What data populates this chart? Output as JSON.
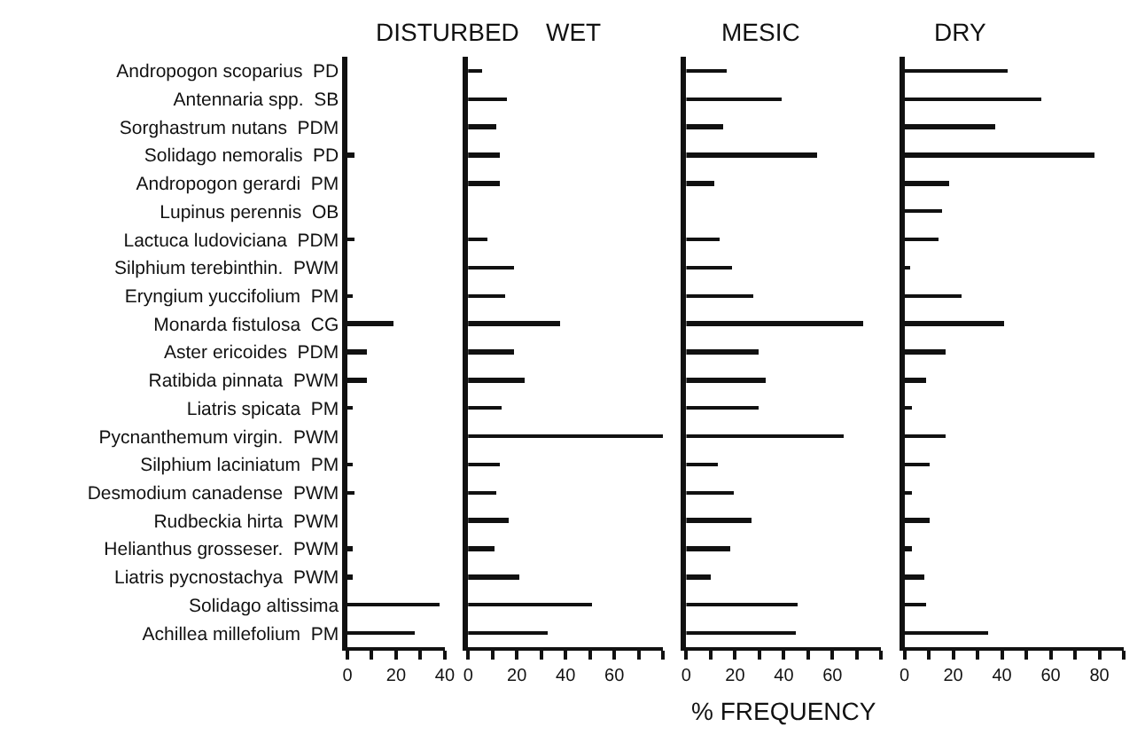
{
  "chart_data": [
    {
      "type": "bar",
      "orientation": "horizontal",
      "title": "DISTURBED",
      "color": "#111111",
      "grid": false,
      "categories": [
        "Andropogon scoparius  PD",
        "Antennaria spp.  SB",
        "Sorghastrum nutans  PDM",
        "Solidago nemoralis  PD",
        "Andropogon gerardi  PM",
        "Lupinus perennis  OB",
        "Lactuca ludoviciana  PDM",
        "Silphium terebinthin.  PWM",
        "Eryngium yuccifolium  PM",
        "Monarda fistulosa  CG",
        "Aster ericoides  PDM",
        "Ratibida pinnata  PWM",
        "Liatris spicata  PM",
        "Pycnanthemum virgin.  PWM",
        "Silphium laciniatum  PM",
        "Desmodium canadense  PWM",
        "Rudbeckia hirta  PWM",
        "Helianthus grosseser.  PWM",
        "Liatris pycnostachya  PWM",
        "Solidago altissima",
        "Achillea millefolium  PM"
      ],
      "values": [
        0,
        0,
        0,
        3,
        0,
        0,
        3,
        0,
        2,
        19,
        8,
        8,
        2,
        0,
        2,
        3,
        0,
        2,
        2,
        38,
        28
      ],
      "xlim": [
        0,
        40
      ],
      "xticks": [
        0,
        {
          "value": 10,
          "label": null
        },
        20,
        {
          "value": 30,
          "label": null
        },
        40
      ]
    },
    {
      "type": "bar",
      "orientation": "horizontal",
      "title": "WET",
      "color": "#111111",
      "grid": false,
      "tick_labels": "x",
      "categories": [
        "Andropogon scoparius  PD",
        "Antennaria spp.  SB",
        "Sorghastrum nutans  PDM",
        "Solidago nemoralis  PD",
        "Andropogon gerardi  PM",
        "Lupinus perennis  OB",
        "Lactuca ludoviciana  PDM",
        "Silphium terebinthin.  PWM",
        "Eryngium yuccifolium  PM",
        "Monarda fistulosa  CG",
        "Aster ericoides  PDM",
        "Ratibida pinnata  PWM",
        "Liatris spicata  PM",
        "Pycnanthemum virgin.  PWM",
        "Silphium laciniatum  PM",
        "Desmodium canadense  PWM",
        "Rudbeckia hirta  PWM",
        "Helianthus grosseser.  PWM",
        "Liatris pycnostachya  PWM",
        "Solidago altissima",
        "Achillea millefolium  PM"
      ],
      "values": [
        6,
        16,
        12,
        13,
        13,
        0,
        8,
        19,
        15,
        38,
        19,
        23,
        14,
        80,
        13,
        12,
        17,
        11,
        21,
        51,
        33
      ],
      "xlim": [
        0,
        80
      ],
      "xticks": [
        0,
        {
          "value": 10,
          "label": null
        },
        20,
        {
          "value": 30,
          "label": null
        },
        40,
        {
          "value": 50,
          "label": null
        },
        60,
        {
          "value": 70,
          "label": null
        },
        {
          "value": 80,
          "label": null
        }
      ]
    },
    {
      "type": "bar",
      "orientation": "horizontal",
      "title": "MESIC",
      "xlabel": "% FREQUENCY",
      "color": "#111111",
      "grid": false,
      "tick_labels": "x",
      "categories": [
        "Andropogon scoparius  PD",
        "Antennaria spp.  SB",
        "Sorghastrum nutans  PDM",
        "Solidago nemoralis  PD",
        "Andropogon gerardi  PM",
        "Lupinus perennis  OB",
        "Lactuca ludoviciana  PDM",
        "Silphium terebinthin.  PWM",
        "Eryngium yuccifolium  PM",
        "Monarda fistulosa  CG",
        "Aster ericoides  PDM",
        "Ratibida pinnata  PWM",
        "Liatris spicata  PM",
        "Pycnanthemum virgin.  PWM",
        "Silphium laciniatum  PM",
        "Desmodium canadense  PWM",
        "Rudbeckia hirta  PWM",
        "Helianthus grosseser.  PWM",
        "Liatris pycnostachya  PWM",
        "Solidago altissima",
        "Achillea millefolium  PM"
      ],
      "values": [
        17,
        39,
        15,
        54,
        12,
        0,
        14,
        19,
        28,
        73,
        30,
        33,
        30,
        65,
        13,
        20,
        27,
        18,
        10,
        46,
        45
      ],
      "xlim": [
        0,
        80
      ],
      "xticks": [
        0,
        {
          "value": 10,
          "label": null
        },
        20,
        {
          "value": 30,
          "label": null
        },
        40,
        {
          "value": 50,
          "label": null
        },
        60,
        {
          "value": 70,
          "label": null
        },
        {
          "value": 80,
          "label": null
        }
      ]
    },
    {
      "type": "bar",
      "orientation": "horizontal",
      "title": "DRY",
      "color": "#111111",
      "grid": false,
      "tick_labels": "x",
      "categories": [
        "Andropogon scoparius  PD",
        "Antennaria spp.  SB",
        "Sorghastrum nutans  PDM",
        "Solidago nemoralis  PD",
        "Andropogon gerardi  PM",
        "Lupinus perennis  OB",
        "Lactuca ludoviciana  PDM",
        "Silphium terebinthin.  PWM",
        "Eryngium yuccifolium  PM",
        "Monarda fistulosa  CG",
        "Aster ericoides  PDM",
        "Ratibida pinnata  PWM",
        "Liatris spicata  PM",
        "Pycnanthemum virgin.  PWM",
        "Silphium laciniatum  PM",
        "Desmodium canadense  PWM",
        "Rudbeckia hirta  PWM",
        "Helianthus grosseser.  PWM",
        "Liatris pycnostachya  PWM",
        "Solidago altissima",
        "Achillea millefolium  PM"
      ],
      "values": [
        42,
        56,
        37,
        78,
        18,
        15,
        14,
        2,
        23,
        41,
        17,
        9,
        3,
        17,
        10,
        3,
        10,
        3,
        8,
        9,
        34
      ],
      "xlim": [
        0,
        90
      ],
      "xticks": [
        0,
        {
          "value": 10,
          "label": null
        },
        20,
        {
          "value": 30,
          "label": null
        },
        40,
        {
          "value": 50,
          "label": null
        },
        60,
        {
          "value": 70,
          "label": null
        },
        80,
        {
          "value": 90,
          "label": null
        }
      ]
    }
  ]
}
